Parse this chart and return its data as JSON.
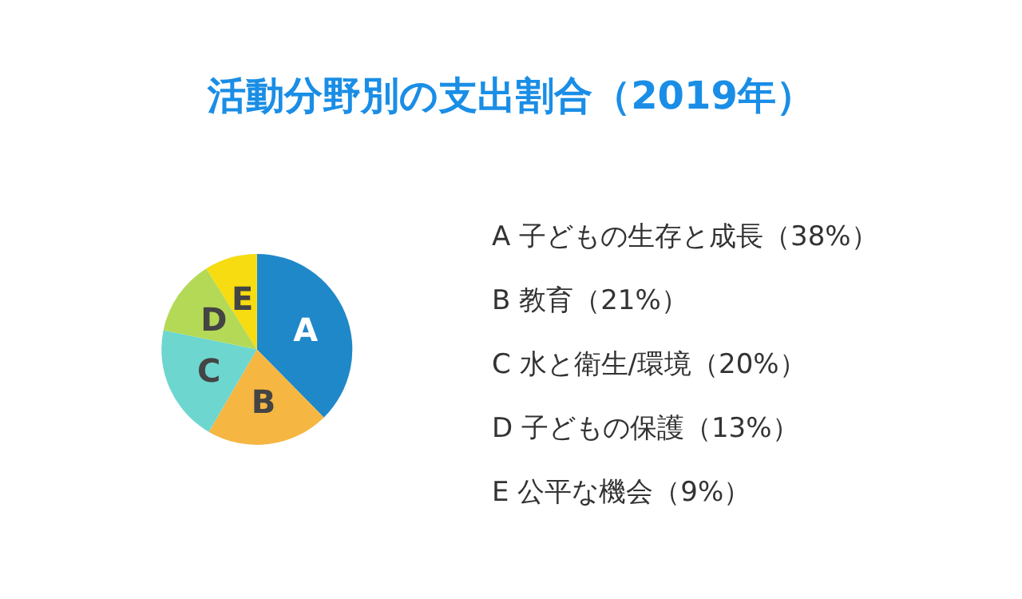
{
  "chart_data": {
    "type": "pie",
    "title": "活動分野別の支出割合（2019年）",
    "categories": [
      "A",
      "B",
      "C",
      "D",
      "E"
    ],
    "values": [
      38,
      21,
      20,
      13,
      9
    ],
    "colors": [
      "#1f88c9",
      "#f5b642",
      "#6dd6cf",
      "#b4d957",
      "#f6dc10"
    ],
    "annotations": [
      "A 子どもの生存と成長（38%）",
      "B 教育（21%）",
      "C 水と衛生/環境（20%）",
      "D 子どもの保護（13%）",
      "E 公平な機会（9%）"
    ],
    "legend": false
  }
}
